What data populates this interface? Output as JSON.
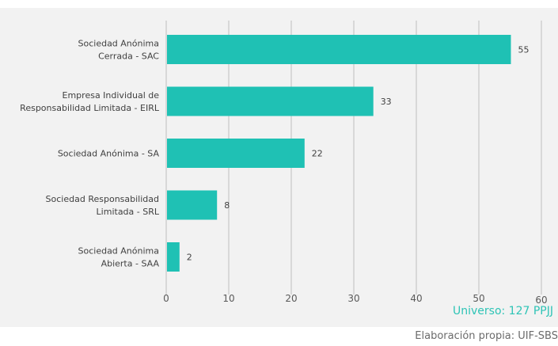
{
  "chart_data": {
    "type": "bar",
    "orientation": "horizontal",
    "categories": [
      [
        "Sociedad Anónima",
        "Cerrada - SAC"
      ],
      [
        "Empresa Individual de",
        "Responsabilidad Limitada - EIRL"
      ],
      [
        "Sociedad Anónima - SA"
      ],
      [
        "Sociedad  Responsabilidad",
        "Limitada - SRL"
      ],
      [
        "Sociedad Anónima",
        "Abierta - SAA"
      ]
    ],
    "values": [
      55,
      33,
      22,
      8,
      2
    ],
    "data_labels": [
      "55",
      "33",
      "22",
      "8",
      "2"
    ],
    "xlim": [
      0,
      60
    ],
    "x_ticks": [
      0,
      10,
      20,
      30,
      40,
      50,
      60
    ],
    "grid": "vertical",
    "bar_color": "#1fc1b4",
    "title": "",
    "xlabel": "",
    "ylabel": ""
  },
  "annotations": {
    "universe": "Universo: 127 PPJJ",
    "source": "Elaboración propia: UIF-SBS"
  },
  "colors": {
    "panel_background": "#f2f2f2",
    "grid": "#bfbfbf",
    "annotation_accent": "#2ec4b6"
  }
}
